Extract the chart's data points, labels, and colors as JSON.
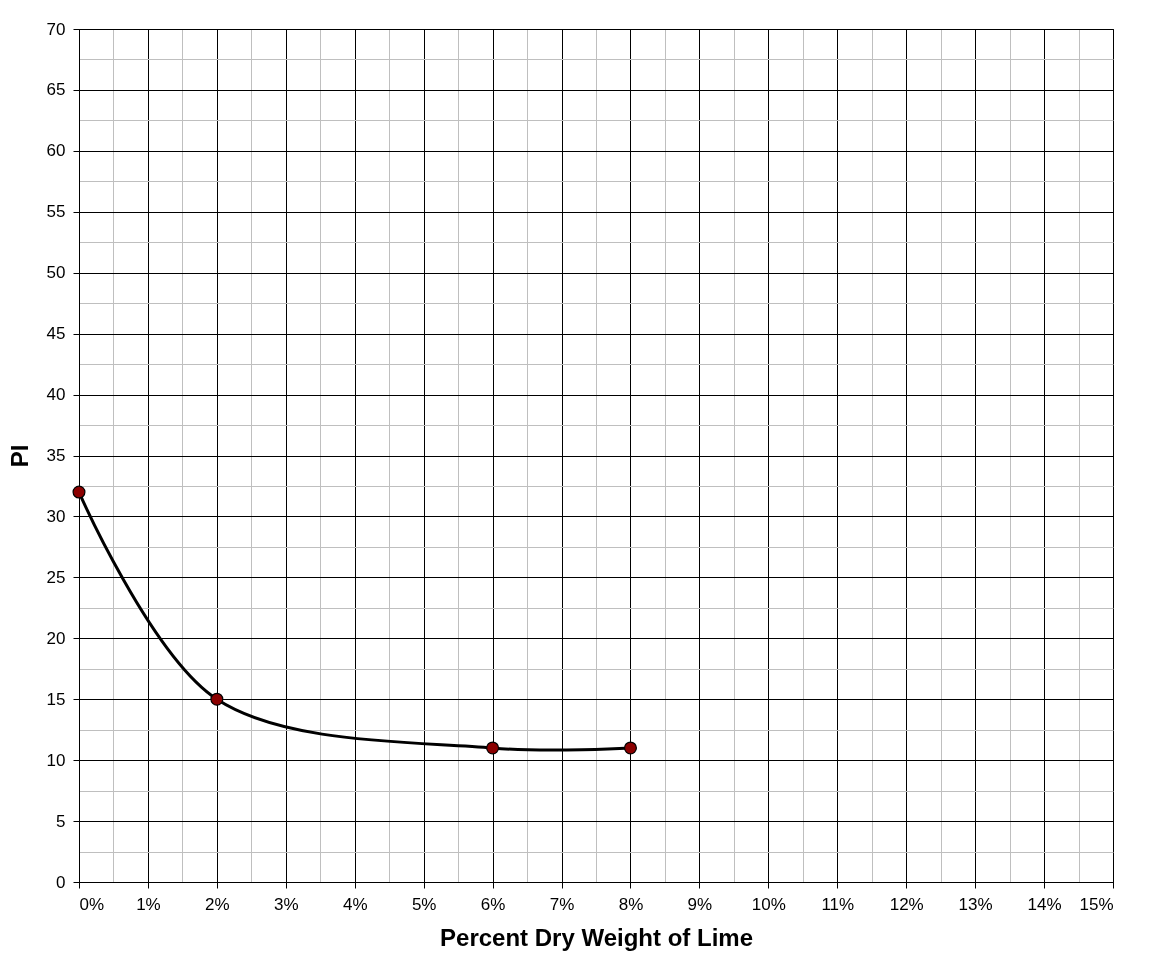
{
  "chart_data": {
    "type": "line",
    "xlabel": "Percent Dry Weight of Lime",
    "ylabel": "PI",
    "x": [
      0,
      2,
      6,
      8
    ],
    "series": [
      {
        "color": "#000000",
        "colors": [
          "#8b0000",
          "#8b0000",
          "#8b0000",
          "#8b0000"
        ],
        "values": [
          32,
          15,
          11,
          11
        ]
      }
    ],
    "xlim": [
      0,
      15
    ],
    "xticks": [
      {
        "value": 0,
        "label": "0%"
      },
      {
        "value": 1,
        "label": "1%"
      },
      {
        "value": 2,
        "label": "2%"
      },
      {
        "value": 3,
        "label": "3%"
      },
      {
        "value": 4,
        "label": "4%"
      },
      {
        "value": 5,
        "label": "5%"
      },
      {
        "value": 6,
        "label": "6%"
      },
      {
        "value": 7,
        "label": "7%"
      },
      {
        "value": 8,
        "label": "8%"
      },
      {
        "value": 9,
        "label": "9%"
      },
      {
        "value": 10,
        "label": "10%"
      },
      {
        "value": 11,
        "label": "11%"
      },
      {
        "value": 12,
        "label": "12%"
      },
      {
        "value": 13,
        "label": "13%"
      },
      {
        "value": 14,
        "label": "14%"
      },
      {
        "value": 15,
        "label": "15%"
      }
    ],
    "ylim": [
      0,
      70
    ],
    "yticks": [
      0,
      5,
      10,
      15,
      20,
      25,
      30,
      35,
      40,
      45,
      50,
      55,
      60,
      65,
      70
    ],
    "grid": true,
    "marker": "circle",
    "line_style": "solid"
  }
}
